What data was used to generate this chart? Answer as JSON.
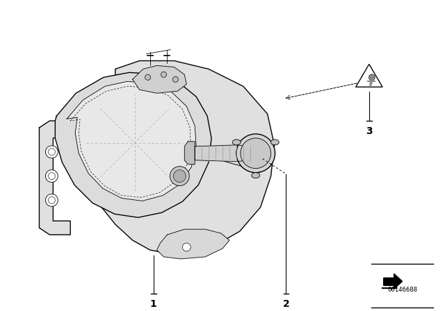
{
  "bg_color": "#ffffff",
  "part_number": "00146688",
  "line_color": "#000000",
  "lw_main": 1.0,
  "lw_thin": 0.6,
  "fog_body_color": "#f0f0f0",
  "lens_color": "#e8e8e8",
  "housing_back_color": "#e0e0e0",
  "label_fontsize": 10,
  "callout_1_label": "1",
  "callout_2_label": "2",
  "callout_3_label": "3"
}
